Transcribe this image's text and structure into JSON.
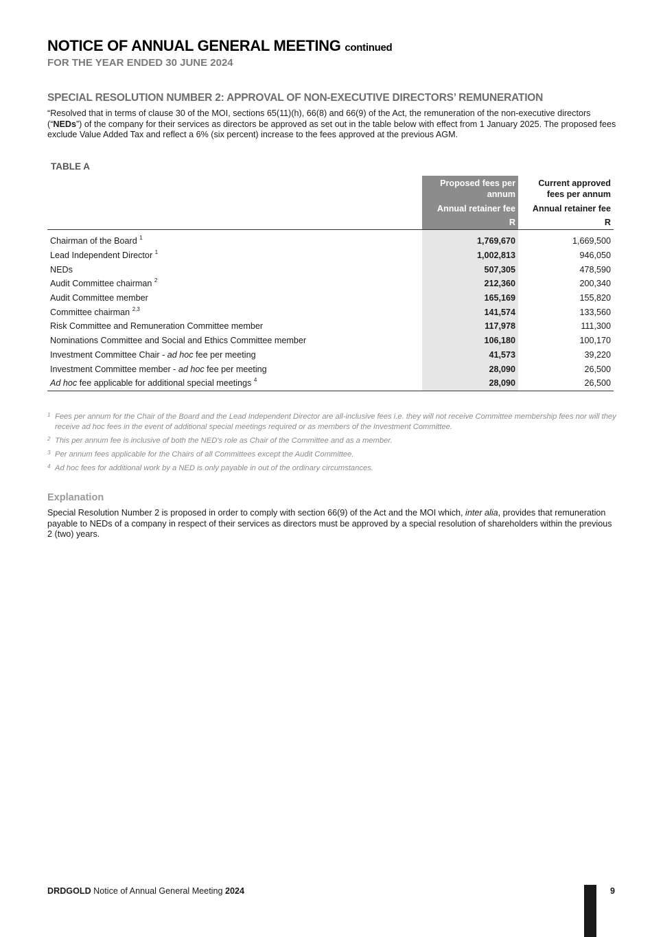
{
  "header": {
    "title": "NOTICE OF ANNUAL GENERAL MEETING",
    "title_suffix": "continued",
    "subtitle": "FOR THE YEAR ENDED 30 JUNE 2024"
  },
  "resolution": {
    "heading": "SPECIAL RESOLUTION NUMBER 2: APPROVAL OF NON-EXECUTIVE DIRECTORS’ REMUNERATION",
    "body_part1": "“Resolved that in terms of clause 30 of the MOI, sections 65(11)(h), 66(8) and 66(9) of the Act, the remuneration of the non-executive directors (“",
    "body_bold": "NEDs",
    "body_part2": "”) of the company for their services as directors be approved as set out in the table below with effect from 1 January 2025. The proposed fees exclude Value Added Tax and reflect a 6% (six percent) increase to the fees approved at the previous AGM."
  },
  "table": {
    "label": "TABLE A",
    "col_proposed": "Proposed fees per annum",
    "col_current": "Current approved fees per annum",
    "sub_proposed": "Annual retainer fee",
    "sub_current": "Annual retainer fee",
    "unit_proposed": "R",
    "unit_current": "R",
    "rows": [
      {
        "pre_italic": "",
        "label": "Chairman of the Board",
        "mid_italic": "",
        "label_end": "",
        "sup": "1",
        "proposed": "1,769,670",
        "current": "1,669,500"
      },
      {
        "pre_italic": "",
        "label": "Lead Independent Director",
        "mid_italic": "",
        "label_end": "",
        "sup": "1",
        "proposed": "1,002,813",
        "current": "946,050"
      },
      {
        "pre_italic": "",
        "label": "NEDs",
        "mid_italic": "",
        "label_end": "",
        "sup": "",
        "proposed": "507,305",
        "current": "478,590"
      },
      {
        "pre_italic": "",
        "label": "Audit Committee chairman",
        "mid_italic": "",
        "label_end": "",
        "sup": "2",
        "proposed": "212,360",
        "current": "200,340"
      },
      {
        "pre_italic": "",
        "label": "Audit Committee member",
        "mid_italic": "",
        "label_end": "",
        "sup": "",
        "proposed": "165,169",
        "current": "155,820"
      },
      {
        "pre_italic": "",
        "label": "Committee chairman",
        "mid_italic": "",
        "label_end": "",
        "sup": "2,3",
        "proposed": "141,574",
        "current": "133,560"
      },
      {
        "pre_italic": "",
        "label": "Risk Committee and Remuneration Committee member",
        "mid_italic": "",
        "label_end": "",
        "sup": "",
        "proposed": "117,978",
        "current": "111,300"
      },
      {
        "pre_italic": "",
        "label": "Nominations Committee and Social and Ethics Committee member",
        "mid_italic": "",
        "label_end": "",
        "sup": "",
        "proposed": "106,180",
        "current": "100,170"
      },
      {
        "pre_italic": "",
        "label": "Investment Committee Chair - ",
        "mid_italic": "ad hoc",
        "label_end": " fee per meeting",
        "sup": "",
        "proposed": "41,573",
        "current": "39,220"
      },
      {
        "pre_italic": "",
        "label": "Investment Committee member - ",
        "mid_italic": "ad hoc",
        "label_end": " fee per meeting",
        "sup": "",
        "proposed": "28,090",
        "current": "26,500"
      },
      {
        "pre_italic": "Ad hoc",
        "label": " fee applicable for additional special meetings",
        "mid_italic": "",
        "label_end": "",
        "sup": "4",
        "proposed": "28,090",
        "current": "26,500"
      }
    ]
  },
  "footnotes": [
    {
      "num": "1",
      "text": "Fees per annum for the Chair of the Board and the Lead Independent Director are all-inclusive fees i.e. they will not receive Committee membership fees nor will they receive ad hoc fees in the event of additional special meetings required or as members of the Investment Committee."
    },
    {
      "num": "2",
      "text": "This per annum fee is inclusive of both the NED's role as Chair of the Committee and as a member."
    },
    {
      "num": "3",
      "text": "Per annum fees applicable for the Chairs of all Committees except the Audit Committee."
    },
    {
      "num": "4",
      "text": "Ad hoc fees for additional work by a NED is only payable in out of the ordinary circumstances."
    }
  ],
  "explanation": {
    "heading": "Explanation",
    "body_part1": "Special Resolution Number 2 is proposed in order to comply with section 66(9) of the Act and the MOI which, ",
    "body_italic": "inter alia",
    "body_part2": ", provides that remuneration payable to NEDs of a company in respect of their services as directors must be approved by a special resolution of shareholders within the previous 2 (two) years."
  },
  "footer": {
    "brand": "DRDGOLD",
    "doc_title": " Notice of Annual General Meeting ",
    "year": "2024",
    "page_number": "9"
  }
}
